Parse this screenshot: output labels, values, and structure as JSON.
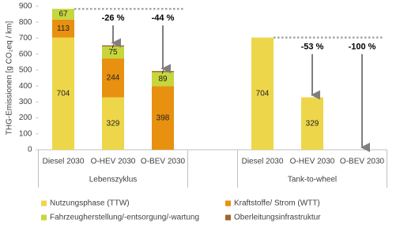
{
  "chart_data": {
    "type": "stacked_bar",
    "y_label": "THG-Emissionen [g CO₂eq / km]",
    "categories": [
      "Diesel 2030",
      "O-HEV 2030",
      "O-BEV 2030",
      null,
      "Diesel 2030",
      "O-HEV 2030",
      "O-BEV 2030"
    ],
    "groups": [
      "Lebenszyklus",
      "Tank-to-wheel"
    ],
    "series": [
      {
        "name": "Nutzungsphase (TTW)",
        "color": "#eed64a",
        "values": [
          704,
          329,
          null,
          null,
          704,
          329,
          null
        ]
      },
      {
        "name": "Kraftstoffe/ Strom (WTT)",
        "color": "#e8900f",
        "values": [
          113,
          244,
          398,
          null,
          null,
          null,
          null
        ]
      },
      {
        "name": "Fahrzeugherstellung/-entsorgung/-wartung",
        "color": "#c6d63c",
        "values": [
          67,
          75,
          89,
          null,
          null,
          null,
          null
        ]
      },
      {
        "name": "Oberleitungsinfrastruktur",
        "color": "#a3652b",
        "values": [
          null,
          7,
          7,
          null,
          null,
          null,
          null
        ]
      }
    ],
    "annotations": [
      "-26 %",
      "-44 %",
      "-53 %",
      "-100 %"
    ],
    "ylim": [
      0,
      900
    ],
    "yticks": [
      0,
      100,
      200,
      300,
      400,
      500,
      600,
      700,
      800,
      900
    ],
    "grid": false
  }
}
